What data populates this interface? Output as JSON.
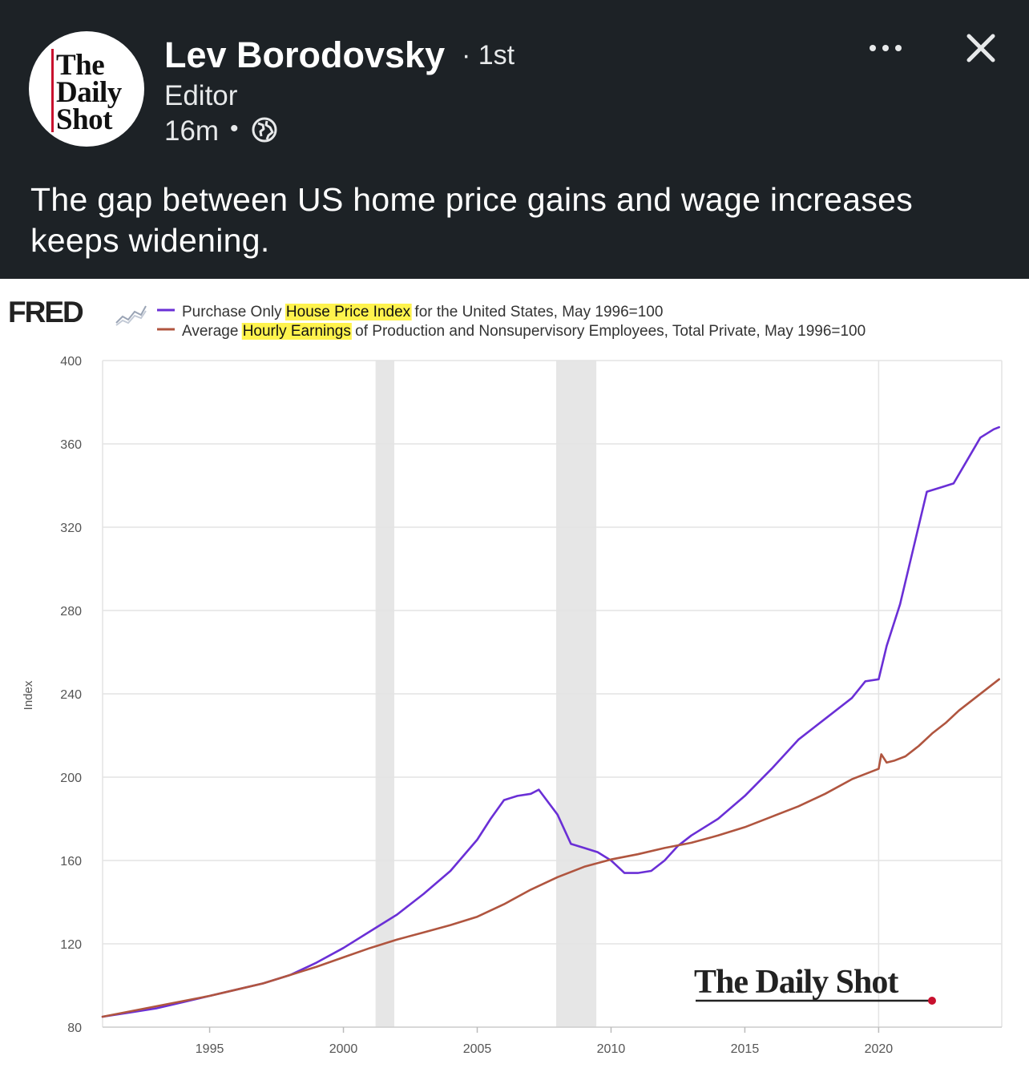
{
  "post": {
    "author_name": "Lev Borodovsky",
    "connection_degree": "· 1st",
    "author_title": "Editor",
    "time_ago": "16m",
    "time_separator": "•",
    "visibility_icon": "globe-icon",
    "text": "The gap between US home price gains and wage increases keeps widening.",
    "avatar_lines": [
      "The",
      "Daily",
      "Shot"
    ],
    "more_icon": "more-horizontal-icon",
    "close_icon": "close-icon"
  },
  "chart_data": {
    "type": "line",
    "source_logo": "FRED",
    "ylabel": "Index",
    "xlabel": "",
    "ylim": [
      80,
      400
    ],
    "xlim": [
      1991,
      2024.6
    ],
    "yticks": [
      "80",
      "120",
      "160",
      "200",
      "240",
      "280",
      "320",
      "360",
      "400"
    ],
    "xticks": [
      "1995",
      "2000",
      "2005",
      "2010",
      "2015",
      "2020"
    ],
    "grid": true,
    "legend_position": "top",
    "watermark": "The Daily Shot",
    "recessions": [
      [
        2001.2,
        2001.9
      ],
      [
        2007.95,
        2009.45
      ]
    ],
    "series": [
      {
        "name": "Purchase Only House Price Index for the United States, May 1996=100",
        "name_parts": [
          "Purchase Only ",
          "House Price Index",
          " for the United States, May 1996=100"
        ],
        "color": "#6a2fd6",
        "x": [
          1991.0,
          1992.0,
          1993.0,
          1994.0,
          1995.0,
          1996.0,
          1997.0,
          1998.0,
          1999.0,
          2000.0,
          2001.0,
          2002.0,
          2003.0,
          2004.0,
          2005.0,
          2005.5,
          2006.0,
          2006.5,
          2007.0,
          2007.3,
          2008.0,
          2008.5,
          2009.0,
          2009.5,
          2010.0,
          2010.5,
          2011.0,
          2011.5,
          2012.0,
          2012.5,
          2013.0,
          2014.0,
          2015.0,
          2016.0,
          2017.0,
          2018.0,
          2019.0,
          2019.5,
          2020.0,
          2020.3,
          2020.8,
          2021.3,
          2021.8,
          2022.3,
          2022.8,
          2023.3,
          2023.8,
          2024.3,
          2024.5
        ],
        "y": [
          85,
          87,
          89,
          92,
          95,
          98,
          101,
          105,
          111,
          118,
          126,
          134,
          144,
          155,
          170,
          180,
          189,
          191,
          192,
          194,
          182,
          168,
          166,
          164,
          160,
          154,
          154,
          155,
          160,
          167,
          172,
          180,
          191,
          204,
          218,
          228,
          238,
          246,
          247,
          263,
          283,
          310,
          337,
          339,
          341,
          352,
          363,
          367,
          368
        ]
      },
      {
        "name": "Average Hourly Earnings of Production and Nonsupervisory Employees, Total Private, May 1996=100",
        "name_parts": [
          "Average ",
          "Hourly Earnings",
          " of Production and Nonsupervisory Employees, Total Private, May 1996=100"
        ],
        "color": "#b0553f",
        "x": [
          1991.0,
          1992.0,
          1993.0,
          1994.0,
          1995.0,
          1996.0,
          1997.0,
          1998.0,
          1999.0,
          2000.0,
          2001.0,
          2002.0,
          2003.0,
          2004.0,
          2005.0,
          2006.0,
          2007.0,
          2008.0,
          2009.0,
          2010.0,
          2011.0,
          2012.0,
          2013.0,
          2014.0,
          2015.0,
          2016.0,
          2017.0,
          2018.0,
          2019.0,
          2020.0,
          2020.1,
          2020.3,
          2020.6,
          2021.0,
          2021.5,
          2022.0,
          2022.5,
          2023.0,
          2023.5,
          2024.0,
          2024.5
        ],
        "y": [
          85,
          87.5,
          90,
          92.5,
          95,
          98,
          101,
          105,
          109,
          113.5,
          118,
          122,
          125.5,
          129,
          133,
          139,
          146,
          152,
          157,
          160.5,
          163,
          166,
          168.5,
          172,
          176,
          181,
          186,
          192,
          199,
          204,
          211,
          207,
          208,
          210,
          215,
          221,
          226,
          232,
          237,
          242,
          247
        ]
      }
    ]
  }
}
